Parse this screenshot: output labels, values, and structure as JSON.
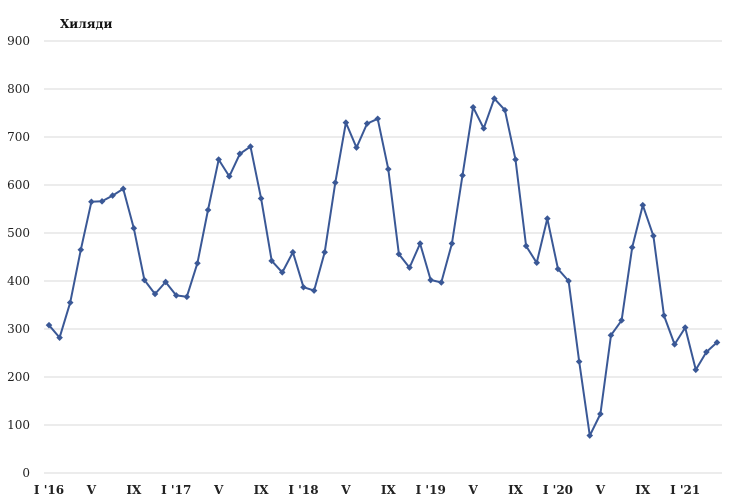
{
  "chart_data": {
    "type": "line",
    "title": "",
    "ylabel": "Хиляди",
    "xlabel": "",
    "ylim": [
      0,
      900
    ],
    "yticks": [
      0,
      100,
      200,
      300,
      400,
      500,
      600,
      700,
      800,
      900
    ],
    "grid": true,
    "legend": "none",
    "line_color": "#3a5896",
    "x_tick_labels": [
      {
        "index": 0,
        "label": "I '16"
      },
      {
        "index": 4,
        "label": "V"
      },
      {
        "index": 8,
        "label": "IX"
      },
      {
        "index": 12,
        "label": "I '17"
      },
      {
        "index": 16,
        "label": "V"
      },
      {
        "index": 20,
        "label": "IX"
      },
      {
        "index": 24,
        "label": "I '18"
      },
      {
        "index": 28,
        "label": "V"
      },
      {
        "index": 32,
        "label": "IX"
      },
      {
        "index": 36,
        "label": "I '19"
      },
      {
        "index": 40,
        "label": "V"
      },
      {
        "index": 44,
        "label": "IX"
      },
      {
        "index": 48,
        "label": "I '20"
      },
      {
        "index": 52,
        "label": "V"
      },
      {
        "index": 56,
        "label": "IX"
      },
      {
        "index": 60,
        "label": "I '21"
      }
    ],
    "series": [
      {
        "values": [
          308,
          282,
          355,
          465,
          565,
          566,
          578,
          592,
          510,
          402,
          373,
          398,
          370,
          367,
          437,
          548,
          653,
          618,
          665,
          680,
          572,
          442,
          418,
          460,
          387,
          380,
          460,
          605,
          730,
          678,
          728,
          738,
          633,
          456,
          428,
          478,
          402,
          397,
          478,
          620,
          762,
          718,
          780,
          756,
          653,
          473,
          438,
          530,
          425,
          400,
          232,
          78,
          123,
          287,
          318,
          470,
          558,
          494,
          328,
          268,
          303,
          215,
          252,
          272
        ]
      }
    ]
  }
}
